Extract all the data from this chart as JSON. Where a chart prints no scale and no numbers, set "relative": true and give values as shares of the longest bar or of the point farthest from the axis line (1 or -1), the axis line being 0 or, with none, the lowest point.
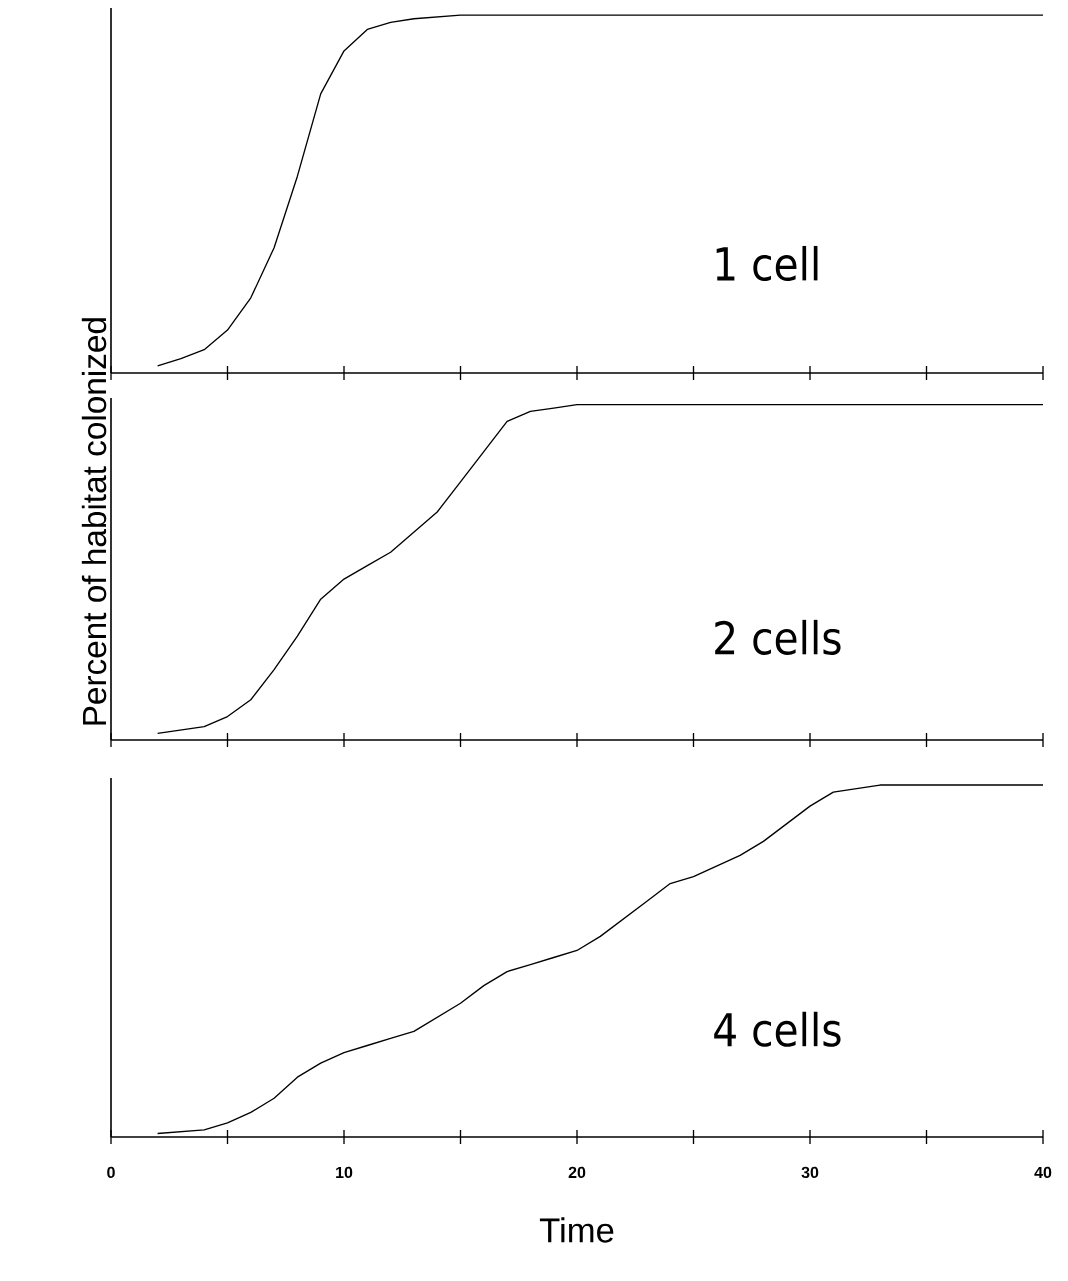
{
  "chart_data": [
    {
      "type": "line",
      "relative": true,
      "xlim": [
        0,
        40
      ],
      "xticks": [
        0,
        {
          "value": 5,
          "label": null
        },
        10,
        {
          "value": 15,
          "label": null
        },
        20,
        {
          "value": 25,
          "label": null
        },
        30,
        {
          "value": 35,
          "label": null
        },
        40
      ],
      "tick_labels": false,
      "annotations": [
        "1 cell"
      ],
      "series": [
        {
          "color": "#000000",
          "x": [
            2,
            3,
            4,
            5,
            6,
            7,
            8,
            9,
            10,
            11,
            12,
            13,
            15,
            40
          ],
          "values": [
            0.02,
            0.04,
            0.065,
            0.12,
            0.21,
            0.35,
            0.55,
            0.78,
            0.9,
            0.96,
            0.98,
            0.99,
            1,
            1
          ]
        }
      ]
    },
    {
      "type": "line",
      "relative": true,
      "xlim": [
        0,
        40
      ],
      "xticks": [
        0,
        {
          "value": 5,
          "label": null
        },
        10,
        {
          "value": 15,
          "label": null
        },
        20,
        {
          "value": 25,
          "label": null
        },
        30,
        {
          "value": 35,
          "label": null
        },
        40
      ],
      "tick_labels": false,
      "ylabel": "Percent of habitat colonized",
      "annotations": [
        "2 cells"
      ],
      "series": [
        {
          "color": "#000000",
          "x": [
            2,
            4,
            5,
            6,
            7,
            8,
            9,
            10,
            11,
            12,
            13,
            14,
            15,
            16,
            17,
            18,
            19,
            20,
            40
          ],
          "values": [
            0.02,
            0.04,
            0.07,
            0.12,
            0.21,
            0.31,
            0.42,
            0.48,
            0.52,
            0.56,
            0.62,
            0.68,
            0.77,
            0.86,
            0.95,
            0.98,
            0.99,
            1,
            1
          ]
        }
      ]
    },
    {
      "type": "line",
      "relative": true,
      "xlim": [
        0,
        40
      ],
      "xticks": [
        0,
        {
          "value": 5,
          "label": null
        },
        10,
        {
          "value": 15,
          "label": null
        },
        20,
        {
          "value": 25,
          "label": null
        },
        30,
        {
          "value": 35,
          "label": null
        },
        40
      ],
      "tick_labels": "x",
      "xlabel": "Time",
      "annotations": [
        "4 cells"
      ],
      "series": [
        {
          "color": "#000000",
          "x": [
            2,
            4,
            5,
            6,
            7,
            8,
            9,
            10,
            11,
            12,
            13,
            14,
            15,
            16,
            17,
            18,
            19,
            20,
            21,
            22,
            23,
            24,
            25,
            26,
            27,
            28,
            29,
            30,
            31,
            32,
            33,
            40
          ],
          "values": [
            0.01,
            0.02,
            0.04,
            0.07,
            0.11,
            0.17,
            0.21,
            0.24,
            0.26,
            0.28,
            0.3,
            0.34,
            0.38,
            0.43,
            0.47,
            0.49,
            0.51,
            0.53,
            0.57,
            0.62,
            0.67,
            0.72,
            0.74,
            0.77,
            0.8,
            0.84,
            0.89,
            0.94,
            0.98,
            0.99,
            1,
            1
          ]
        }
      ]
    }
  ]
}
